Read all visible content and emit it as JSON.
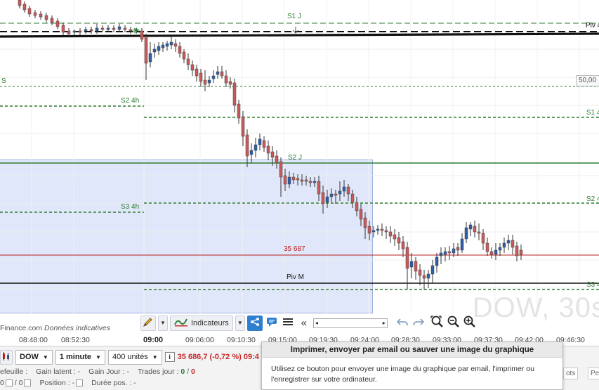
{
  "chart": {
    "watermark": "DOW, 30s",
    "source": "Finance.com",
    "source_note": "Données indicatives",
    "price_tag": "50,00",
    "levels": [
      {
        "label": "S1 J",
        "color": "#2e7d32"
      },
      {
        "label": "Piv 4",
        "color": "#111111"
      },
      {
        "label": "4h",
        "color": "#2e7d32"
      },
      {
        "label": "S",
        "color": "#2e7d32"
      },
      {
        "label": "S2 4h",
        "color": "#2e7d32"
      },
      {
        "label": "S1 4",
        "color": "#2e7d32"
      },
      {
        "label": "S2 J",
        "color": "#2e7d32"
      },
      {
        "label": "S3 4h",
        "color": "#2e7d32"
      },
      {
        "label": "S2 4",
        "color": "#2e7d32"
      },
      {
        "label": "35 687",
        "color": "#b71c1c"
      },
      {
        "label": "Piv M",
        "color": "#111111"
      },
      {
        "label": "S3 4",
        "color": "#2e7d32"
      }
    ],
    "colors": {
      "up": "#2d5fa8",
      "down": "#c85a5a",
      "zone": "#c8d4f5"
    }
  },
  "toolbar": {
    "indicators_label": "Indicateurs",
    "scroll_left": "◂",
    "scroll_right": "▸",
    "double_left": "«",
    "icons": [
      "draw-icon",
      "indicators-icon",
      "share-icon",
      "comment-icon",
      "menu-icon",
      "undo-icon",
      "redo-icon",
      "zoom-fit-icon",
      "zoom-out-icon",
      "zoom-in-icon"
    ]
  },
  "xaxis": {
    "ticks": [
      "08:48:00",
      "08:52:30",
      "09:00",
      "09:06:00",
      "09:10:30",
      "09:15:00",
      "09:19:30",
      "09:24:00",
      "09:28:30",
      "09:33:00",
      "09:37:30",
      "09:42:00",
      "09:46:30"
    ]
  },
  "bottom": {
    "instrument": "DOW",
    "interval": "1 minute",
    "units": "400 unités",
    "quote": "35 686,7 (-0,72 %) 09:4",
    "gain_latent_label": "Gain latent :",
    "gain_latent_value": "-",
    "gain_jour_label": "Gain Jour :",
    "gain_jour_value": "-",
    "trades_label": "Trades jour :",
    "trades_value_green": "0",
    "trades_sep": "/",
    "trades_value_red": "0",
    "position_label": "Position :",
    "position_value": "-",
    "duree_label": "Durée pos. :",
    "duree_value": "-",
    "left_clip1": "efeuille :",
    "left_clip2": "0",
    "left_clip3": "0",
    "right_box1": "ots",
    "right_box2": "Per"
  },
  "tooltip": {
    "title": "Imprimer, envoyer par email ou sauver une image du graphique",
    "body": "Utilisez ce bouton pour envoyer une image du graphique par email, l'imprimer ou l'enregistrer sur votre ordinateur."
  }
}
